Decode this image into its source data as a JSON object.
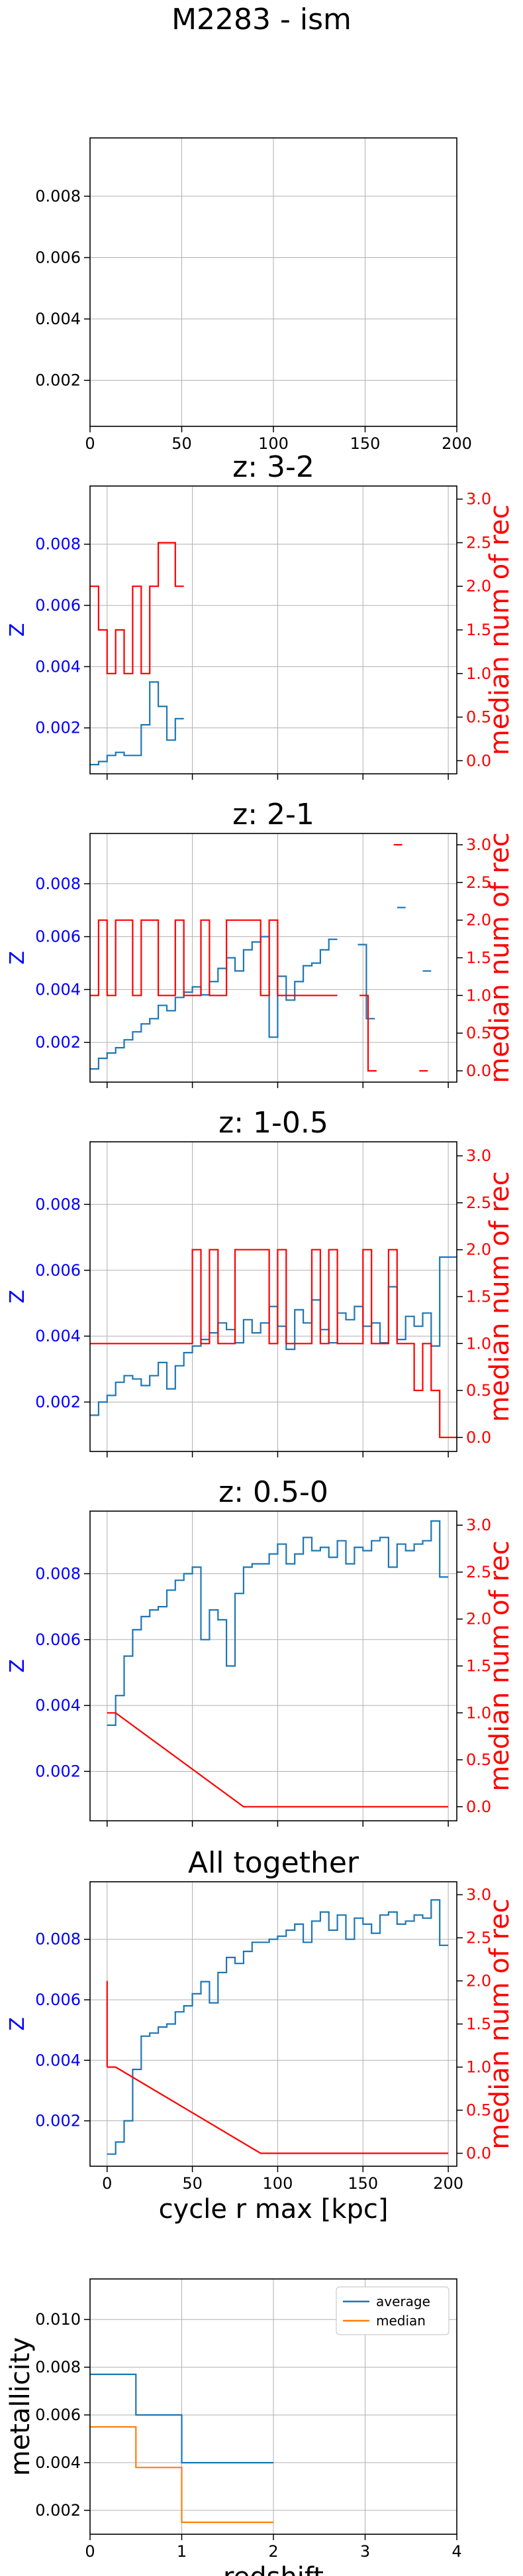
{
  "figure": {
    "suptitle": "M2283 - ism",
    "colors": {
      "average": "#1f77b4",
      "median": "#ff7f0e",
      "rec": "#ff0000",
      "zaxis": "#0000ff",
      "grid": "#b0b0b0"
    }
  },
  "chart_data": [
    {
      "id": "p0",
      "type": "line",
      "title": "",
      "xlim": [
        0,
        200
      ],
      "ylim": [
        0.0005,
        0.0099
      ],
      "xticks": [
        "0",
        "50",
        "100",
        "150",
        "200"
      ],
      "yticks": [
        "0.002",
        "0.004",
        "0.006",
        "0.008"
      ],
      "xticks_visible": true,
      "grid": true,
      "series": []
    },
    {
      "id": "p1",
      "type": "line",
      "title": "z: 3-2",
      "xlim": [
        -10,
        205
      ],
      "ylim": [
        0.0005,
        0.0099
      ],
      "y2lim": [
        -0.15,
        3.15
      ],
      "ylabel": "Z",
      "y2label": "median num of rec",
      "yticks": [
        "0.002",
        "0.004",
        "0.006",
        "0.008"
      ],
      "y2ticks": [
        "0.0",
        "0.5",
        "1.0",
        "1.5",
        "2.0",
        "2.5",
        "3.0"
      ],
      "xticks_visible": false,
      "grid": true,
      "series": [
        {
          "axis": "left",
          "color": "average",
          "step": 5,
          "x": [
            -10,
            -5,
            0,
            5,
            10,
            15,
            20,
            25,
            30,
            35,
            40
          ],
          "y": [
            0.0008,
            0.0009,
            0.0011,
            0.0012,
            0.0011,
            0.0011,
            0.0021,
            0.0035,
            0.0027,
            0.0016,
            0.0023
          ]
        },
        {
          "axis": "right",
          "color": "rec",
          "step": 5,
          "x": [
            -10,
            -5,
            0,
            5,
            10,
            15,
            20,
            25,
            30,
            35,
            40
          ],
          "y": [
            2.0,
            1.5,
            1.0,
            1.5,
            1.0,
            2.0,
            1.0,
            2.0,
            2.5,
            2.5,
            2.0
          ]
        }
      ]
    },
    {
      "id": "p2",
      "type": "line",
      "title": "z: 2-1",
      "xlim": [
        -10,
        205
      ],
      "ylim": [
        0.0005,
        0.0099
      ],
      "y2lim": [
        -0.15,
        3.15
      ],
      "ylabel": "Z",
      "y2label": "median num of rec",
      "yticks": [
        "0.002",
        "0.004",
        "0.006",
        "0.008"
      ],
      "y2ticks": [
        "0.0",
        "0.5",
        "1.0",
        "1.5",
        "2.0",
        "2.5",
        "3.0"
      ],
      "xticks_visible": false,
      "grid": true,
      "series": [
        {
          "axis": "left",
          "color": "average",
          "step": 5,
          "x": [
            -10,
            -5,
            0,
            5,
            10,
            15,
            20,
            25,
            30,
            35,
            40,
            45,
            50,
            55,
            60,
            65,
            70,
            75,
            80,
            85,
            90,
            95,
            100,
            105,
            110,
            115,
            120,
            125,
            130
          ],
          "y": [
            0.001,
            0.0014,
            0.0016,
            0.0018,
            0.0021,
            0.0024,
            0.0027,
            0.0029,
            0.0034,
            0.0032,
            0.0037,
            0.0039,
            0.0041,
            0.0038,
            0.0043,
            0.0048,
            0.0052,
            0.0047,
            0.0055,
            0.0058,
            0.006,
            0.0022,
            0.0045,
            0.0036,
            0.0043,
            0.0049,
            0.005,
            0.0055,
            0.0059
          ]
        },
        {
          "axis": "left",
          "color": "average",
          "step": 5,
          "x": [
            147,
            152
          ],
          "y": [
            0.0057,
            0.0029
          ]
        },
        {
          "axis": "left",
          "color": "average",
          "step": 5,
          "x": [
            170
          ],
          "y": [
            0.0071
          ]
        },
        {
          "axis": "left",
          "color": "average",
          "step": 5,
          "x": [
            185
          ],
          "y": [
            0.0047
          ]
        },
        {
          "axis": "right",
          "color": "rec",
          "step": 5,
          "x": [
            -10,
            -5,
            0,
            5,
            10,
            15,
            20,
            25,
            30,
            35,
            40,
            45,
            50,
            55,
            60,
            65,
            70,
            75,
            80,
            85,
            90,
            95,
            100,
            105,
            110,
            115,
            120,
            125,
            130
          ],
          "y": [
            1.0,
            2.0,
            1.0,
            2.0,
            2.0,
            1.0,
            2.0,
            2.0,
            1.0,
            1.0,
            2.0,
            1.0,
            1.0,
            2.0,
            1.0,
            1.0,
            2.0,
            2.0,
            2.0,
            2.0,
            1.0,
            2.0,
            1.0,
            1.0,
            1.0,
            1.0,
            1.0,
            1.0,
            1.0
          ]
        },
        {
          "axis": "right",
          "color": "rec",
          "step": 5,
          "x": [
            148,
            153
          ],
          "y": [
            1.0,
            0.0
          ]
        },
        {
          "axis": "right",
          "color": "rec",
          "step": 5,
          "x": [
            168
          ],
          "y": [
            3.0
          ]
        },
        {
          "axis": "right",
          "color": "rec",
          "step": 5,
          "x": [
            183
          ],
          "y": [
            0.0
          ]
        }
      ]
    },
    {
      "id": "p3",
      "type": "line",
      "title": "z: 1-0.5",
      "xlim": [
        -10,
        205
      ],
      "ylim": [
        0.0005,
        0.0099
      ],
      "y2lim": [
        -0.15,
        3.15
      ],
      "ylabel": "Z",
      "y2label": "median num of rec",
      "yticks": [
        "0.002",
        "0.004",
        "0.006",
        "0.008"
      ],
      "y2ticks": [
        "0.0",
        "0.5",
        "1.0",
        "1.5",
        "2.0",
        "2.5",
        "3.0"
      ],
      "xticks_visible": false,
      "grid": true,
      "series": [
        {
          "axis": "left",
          "color": "average",
          "step": 5,
          "x": [
            -10,
            -5,
            0,
            5,
            10,
            15,
            20,
            25,
            30,
            35,
            40,
            45,
            50,
            55,
            60,
            65,
            70,
            75,
            80,
            85,
            90,
            95,
            100,
            105,
            110,
            115,
            120,
            125,
            130,
            135,
            140,
            145,
            150,
            155,
            160,
            165,
            170,
            175,
            180,
            185,
            190,
            195,
            200
          ],
          "y": [
            0.0016,
            0.002,
            0.0022,
            0.0026,
            0.0028,
            0.0027,
            0.0025,
            0.0028,
            0.0032,
            0.0024,
            0.0031,
            0.0035,
            0.0037,
            0.0039,
            0.0041,
            0.0044,
            0.0042,
            0.0038,
            0.0045,
            0.0041,
            0.0044,
            0.0049,
            0.0043,
            0.0036,
            0.0048,
            0.0044,
            0.0051,
            0.0042,
            0.0038,
            0.0047,
            0.0045,
            0.0049,
            0.0043,
            0.0044,
            0.0038,
            0.0055,
            0.0039,
            0.0046,
            0.0043,
            0.0047,
            0.0037,
            0.0064,
            0.0064
          ]
        },
        {
          "axis": "right",
          "color": "rec",
          "step": 5,
          "x": [
            -10,
            -5,
            0,
            5,
            10,
            15,
            20,
            25,
            30,
            35,
            40,
            45,
            50,
            55,
            60,
            65,
            70,
            75,
            80,
            85,
            90,
            95,
            100,
            105,
            110,
            115,
            120,
            125,
            130,
            135,
            140,
            145,
            150,
            155,
            160,
            165,
            170,
            175,
            180,
            185,
            190,
            195,
            200
          ],
          "y": [
            1.0,
            1.0,
            1.0,
            1.0,
            1.0,
            1.0,
            1.0,
            1.0,
            1.0,
            1.0,
            1.0,
            1.0,
            2.0,
            1.0,
            2.0,
            1.0,
            1.0,
            2.0,
            2.0,
            2.0,
            2.0,
            1.0,
            2.0,
            1.0,
            1.0,
            1.0,
            2.0,
            1.0,
            2.0,
            1.0,
            1.0,
            1.0,
            2.0,
            1.0,
            1.0,
            2.0,
            1.0,
            1.0,
            0.5,
            1.0,
            0.5,
            0.0,
            0.0
          ]
        }
      ]
    },
    {
      "id": "p4",
      "type": "line",
      "title": "z: 0.5-0",
      "xlim": [
        -10,
        205
      ],
      "ylim": [
        0.0005,
        0.0099
      ],
      "y2lim": [
        -0.15,
        3.15
      ],
      "ylabel": "Z",
      "y2label": "median num of rec",
      "yticks": [
        "0.002",
        "0.004",
        "0.006",
        "0.008"
      ],
      "y2ticks": [
        "0.0",
        "0.5",
        "1.0",
        "1.5",
        "2.0",
        "2.5",
        "3.0"
      ],
      "xticks_visible": false,
      "grid": true,
      "series": [
        {
          "axis": "left",
          "color": "average",
          "step": 5,
          "x": [
            0,
            5,
            10,
            15,
            20,
            25,
            30,
            35,
            40,
            45,
            50,
            55,
            60,
            65,
            70,
            75,
            80,
            85,
            90,
            95,
            100,
            105,
            110,
            115,
            120,
            125,
            130,
            135,
            140,
            145,
            150,
            155,
            160,
            165,
            170,
            175,
            180,
            185,
            190,
            195
          ],
          "y": [
            0.0034,
            0.0043,
            0.0055,
            0.0063,
            0.0067,
            0.0069,
            0.007,
            0.0075,
            0.0078,
            0.008,
            0.0082,
            0.006,
            0.0069,
            0.0066,
            0.0052,
            0.0074,
            0.0082,
            0.0083,
            0.0083,
            0.0086,
            0.0089,
            0.0083,
            0.0086,
            0.0091,
            0.0087,
            0.0088,
            0.0085,
            0.009,
            0.0083,
            0.0088,
            0.0087,
            0.009,
            0.0091,
            0.0082,
            0.0089,
            0.0087,
            0.0089,
            0.009,
            0.0096,
            0.0079
          ]
        },
        {
          "axis": "right",
          "color": "rec",
          "step": 5,
          "x": [
            0,
            80,
            195
          ],
          "y": [
            1.0,
            0.0,
            0.0
          ]
        }
      ]
    },
    {
      "id": "p5",
      "type": "line",
      "title": "All together",
      "xlim": [
        -10,
        205
      ],
      "ylim": [
        0.0005,
        0.0099
      ],
      "y2lim": [
        -0.15,
        3.15
      ],
      "xlabel": "cycle r max [kpc]",
      "ylabel": "Z",
      "y2label": "median num of rec",
      "xticks": [
        "0",
        "50",
        "100",
        "150",
        "200"
      ],
      "yticks": [
        "0.002",
        "0.004",
        "0.006",
        "0.008"
      ],
      "y2ticks": [
        "0.0",
        "0.5",
        "1.0",
        "1.5",
        "2.0",
        "2.5",
        "3.0"
      ],
      "xticks_visible": true,
      "grid": true,
      "series": [
        {
          "axis": "left",
          "color": "average",
          "step": 5,
          "x": [
            0,
            5,
            10,
            15,
            20,
            25,
            30,
            35,
            40,
            45,
            50,
            55,
            60,
            65,
            70,
            75,
            80,
            85,
            90,
            95,
            100,
            105,
            110,
            115,
            120,
            125,
            130,
            135,
            140,
            145,
            150,
            155,
            160,
            165,
            170,
            175,
            180,
            185,
            190,
            195
          ],
          "y": [
            0.0009,
            0.0013,
            0.002,
            0.0037,
            0.0048,
            0.0049,
            0.0051,
            0.0052,
            0.0056,
            0.0058,
            0.0062,
            0.0066,
            0.0059,
            0.0069,
            0.0074,
            0.0072,
            0.0076,
            0.0079,
            0.0079,
            0.008,
            0.0081,
            0.0083,
            0.0085,
            0.0079,
            0.0086,
            0.0089,
            0.0083,
            0.0088,
            0.008,
            0.0087,
            0.0085,
            0.0082,
            0.0088,
            0.0089,
            0.0085,
            0.0086,
            0.0088,
            0.0087,
            0.0093,
            0.0078
          ]
        },
        {
          "axis": "right",
          "color": "rec",
          "step": 5,
          "x": [
            0,
            90,
            195
          ],
          "y": [
            1.0,
            0.0,
            0.0
          ]
        },
        {
          "axis": "right",
          "color": "rec",
          "step": 0,
          "x": [
            0,
            0
          ],
          "y": [
            2.0,
            1.0
          ]
        }
      ]
    },
    {
      "id": "p6",
      "type": "line",
      "title": "",
      "xlim": [
        0,
        4
      ],
      "ylim": [
        0.001,
        0.0117
      ],
      "xlabel": "redshift",
      "ylabel": "metallicity",
      "xticks": [
        "0",
        "1",
        "2",
        "3",
        "4"
      ],
      "yticks": [
        "0.002",
        "0.004",
        "0.006",
        "0.008",
        "0.010"
      ],
      "xticks_visible": true,
      "grid": true,
      "legend": {
        "placement": "top-right",
        "entries": [
          "average",
          "median"
        ]
      },
      "series": [
        {
          "name": "average",
          "axis": "left",
          "color": "average",
          "step": 0,
          "x": [
            0,
            0.5,
            0.5,
            1,
            1,
            2
          ],
          "y": [
            0.0077,
            0.0077,
            0.006,
            0.006,
            0.004,
            0.004
          ]
        },
        {
          "name": "median",
          "axis": "left",
          "color": "median",
          "step": 0,
          "x": [
            0,
            0.5,
            0.5,
            1,
            1,
            2
          ],
          "y": [
            0.0055,
            0.0055,
            0.0038,
            0.0038,
            0.0015,
            0.0015
          ]
        }
      ]
    }
  ]
}
